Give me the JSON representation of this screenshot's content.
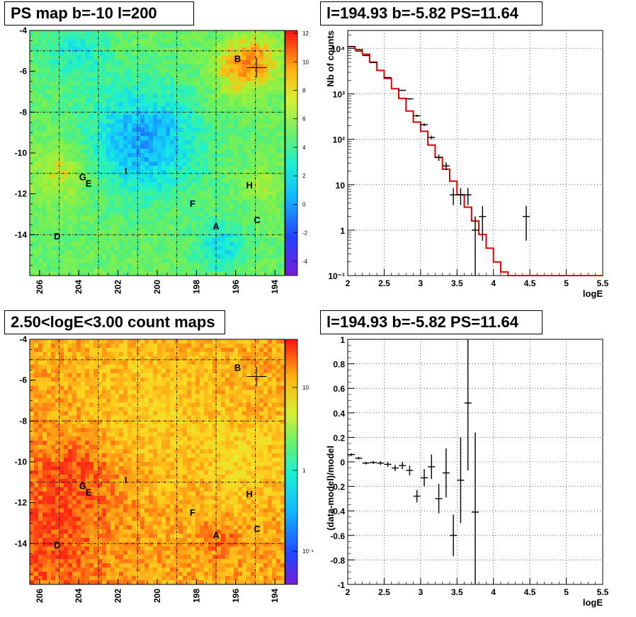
{
  "titles": {
    "psmap": "PS map b=-10 l=200",
    "spectrum": "l=194.93 b=-5.82 PS=11.64",
    "countmap": "2.50<logE<3.00 count maps",
    "residual": "l=194.93 b=-5.82 PS=11.64"
  },
  "colors": {
    "model_line": "#e00000",
    "data_points": "#000000",
    "grid": "#000000"
  },
  "maps": {
    "x_ticks": [
      "206",
      "204",
      "202",
      "200",
      "198",
      "196",
      "194"
    ],
    "y_ticks": [
      "-4",
      "-6",
      "-8",
      "-10",
      "-12",
      "-14"
    ],
    "sources": [
      {
        "label": "A",
        "l": 197.0,
        "b": -13.6
      },
      {
        "label": "B",
        "l": 195.9,
        "b": -5.4
      },
      {
        "label": "C",
        "l": 194.9,
        "b": -13.3
      },
      {
        "label": "D",
        "l": 205.1,
        "b": -14.1
      },
      {
        "label": "E",
        "l": 203.5,
        "b": -11.5
      },
      {
        "label": "F",
        "l": 198.2,
        "b": -12.5
      },
      {
        "label": "G",
        "l": 203.8,
        "b": -11.2
      },
      {
        "label": "H",
        "l": 195.3,
        "b": -11.6
      },
      {
        "label": "I",
        "l": 201.6,
        "b": -10.9
      }
    ],
    "cross": {
      "l": 194.93,
      "b": -5.82
    },
    "psmap_scale_ticks": [
      "12",
      "10",
      "8",
      "6",
      "4",
      "2",
      "0",
      "-2",
      "-4"
    ],
    "countmap_scale_ticks": [
      "10",
      "1",
      "10⁻¹"
    ]
  },
  "spectrum_axes": {
    "xlabel": "logE",
    "ylabel": "Nb of counts",
    "x_ticks": [
      "2",
      "2.5",
      "3",
      "3.5",
      "4",
      "4.5",
      "5",
      "5.5"
    ],
    "y_ticks": [
      "10⁻¹",
      "1",
      "10",
      "10²",
      "10³",
      "10⁴"
    ]
  },
  "residual_axes": {
    "xlabel": "logE",
    "ylabel": "(data-model)/model",
    "x_ticks": [
      "2",
      "2.5",
      "3",
      "3.5",
      "4",
      "4.5",
      "5",
      "5.5"
    ],
    "y_ticks": [
      "1",
      "0.8",
      "0.6",
      "0.4",
      "0.2",
      "0",
      "-0.2",
      "-0.4",
      "-0.6",
      "-0.8",
      "-1"
    ]
  },
  "chart_data": [
    {
      "type": "heatmap",
      "title": "PS map b=-10 l=200",
      "xlim": [
        206.5,
        193.5
      ],
      "ylim": [
        -16,
        -4
      ],
      "zlim": [
        -5,
        12
      ],
      "grid": true
    },
    {
      "type": "line",
      "title": "l=194.93 b=-5.82 PS=11.64",
      "xlabel": "logE",
      "ylabel": "Nb of counts",
      "xlim": [
        2,
        5.5
      ],
      "ylim": [
        0.1,
        25000
      ],
      "log_y": true,
      "grid": true,
      "bin_edges": [
        2.0,
        2.1,
        2.2,
        2.3,
        2.4,
        2.5,
        2.6,
        2.7,
        2.8,
        2.9,
        3.0,
        3.1,
        3.2,
        3.3,
        3.4,
        3.5,
        3.6,
        3.7,
        3.8,
        3.9,
        4.0,
        4.1,
        4.2,
        4.3,
        4.4,
        4.5,
        4.6,
        4.7,
        4.8,
        4.9,
        5.0,
        5.1,
        5.2,
        5.3,
        5.4,
        5.5
      ],
      "series": [
        {
          "values": [
            11000,
            9500,
            7500,
            5000,
            3300,
            2200,
            1300,
            800,
            420,
            240,
            150,
            75,
            40,
            22,
            12,
            6,
            3.2,
            1.6,
            0.8,
            0.4,
            0.2,
            0.12,
            0.1,
            0.1,
            0.1,
            0.1,
            0.1,
            0.1,
            0.1,
            0.1,
            0.1,
            0.1,
            0.1,
            0.1,
            0.1
          ]
        },
        {
          "x": [
            2.05,
            2.15,
            2.25,
            2.35,
            2.55,
            2.75,
            2.85,
            2.95,
            3.05,
            3.15,
            3.25,
            3.35,
            3.45,
            3.55,
            3.65,
            3.75,
            3.85,
            4.45
          ],
          "y": [
            11000,
            8800,
            7000,
            4900,
            2300,
            1200,
            780,
            330,
            210,
            110,
            40,
            26,
            6,
            6,
            6,
            1,
            2,
            2
          ]
        }
      ]
    },
    {
      "type": "heatmap",
      "title": "2.50<logE<3.00 count maps",
      "xlim": [
        206.5,
        193.5
      ],
      "ylim": [
        -16,
        -4
      ],
      "log_z": true,
      "grid": true
    },
    {
      "type": "scatter",
      "title": "l=194.93 b=-5.82 PS=11.64",
      "xlabel": "logE",
      "ylabel": "(data-model)/model",
      "xlim": [
        2,
        5.5
      ],
      "ylim": [
        -1,
        1
      ],
      "grid": true,
      "series": [
        {
          "x": [
            2.05,
            2.15,
            2.25,
            2.35,
            2.45,
            2.55,
            2.65,
            2.75,
            2.85,
            2.95,
            3.05,
            3.15,
            3.25,
            3.35,
            3.45,
            3.55,
            3.65,
            3.75
          ],
          "y": [
            0.06,
            0.03,
            -0.01,
            -0.005,
            -0.01,
            -0.02,
            -0.05,
            -0.03,
            -0.07,
            -0.28,
            -0.13,
            -0.04,
            -0.3,
            -0.09,
            -0.6,
            -0.15,
            0.48,
            -0.41
          ],
          "err": [
            0.01,
            0.01,
            0.01,
            0.012,
            0.015,
            0.02,
            0.025,
            0.03,
            0.04,
            0.05,
            0.07,
            0.1,
            0.12,
            0.2,
            0.17,
            0.35,
            0.55,
            0.65
          ]
        }
      ]
    }
  ]
}
